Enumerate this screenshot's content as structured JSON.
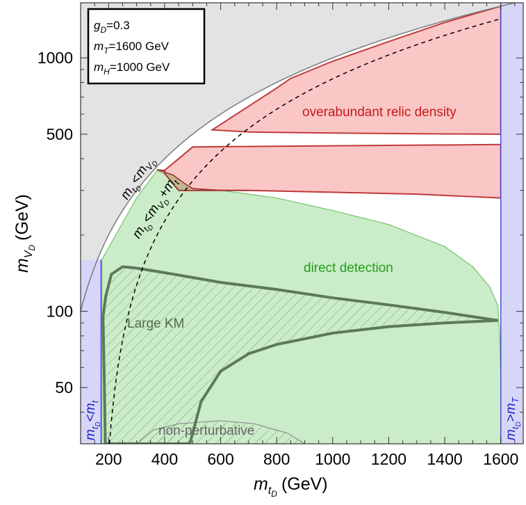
{
  "chart_data": {
    "type": "area",
    "title": "",
    "xlabel": {
      "symbol": "m",
      "sub": "t",
      "subsub": "D",
      "unit": "(GeV)"
    },
    "ylabel": {
      "symbol": "m",
      "sub": "V",
      "subsub": "D",
      "unit": "(GeV)"
    },
    "xlim": [
      100,
      1680
    ],
    "ylim": [
      30,
      1650
    ],
    "yscale": "log",
    "xticks": [
      200,
      400,
      600,
      800,
      1000,
      1200,
      1400,
      1600
    ],
    "xtick_labels": [
      "200",
      "400",
      "600",
      "800",
      "1000",
      "1200",
      "1400",
      "1600"
    ],
    "yticks": [
      50,
      100,
      500,
      1000
    ],
    "ytick_labels": [
      "50",
      "100",
      "500",
      "1000"
    ],
    "parameters": [
      {
        "sym": "g",
        "sub": "D",
        "val": "=0.3"
      },
      {
        "sym": "m",
        "sub": "T",
        "val": "=1600 GeV"
      },
      {
        "sym": "m",
        "sub": "H",
        "val": "=1000 GeV"
      }
    ],
    "regions": [
      {
        "name": "kinematic-bound",
        "label": "m_tD < m_VD",
        "color": "#e3e3e3"
      },
      {
        "name": "overabundant",
        "label": "overabundant relic density",
        "color": "#fbc6c6",
        "label_color": "#c41a1a"
      },
      {
        "name": "direct-detection",
        "label": "direct detection",
        "color": "#cbecc8",
        "label_color": "#23a11e"
      },
      {
        "name": "large-km",
        "label": "Large KM",
        "color": "#5a7a5a",
        "label_color": "#4c6b4c"
      },
      {
        "name": "non-perturbative",
        "label": "non-perturbative",
        "color": "#7a7a7a",
        "label_color": "#666666"
      },
      {
        "name": "low-mass-excluded",
        "label": "m_tD < m_t",
        "color": "#d6d6f8",
        "label_color": "#2323c8"
      },
      {
        "name": "high-mass-excluded",
        "label": "m_tD > m_T",
        "color": "#d6d6f8",
        "label_color": "#2323c8"
      }
    ],
    "boundaries": {
      "mt": 173,
      "mT": 1600,
      "diagonal": "m_VD = m_tD",
      "dashed": "m_VD = m_tD - m_t"
    },
    "relic_upper_band": {
      "top": [
        [
          570,
          520
        ],
        [
          800,
          760
        ],
        [
          850,
          830
        ],
        [
          1000,
          970
        ],
        [
          1200,
          1160
        ],
        [
          1400,
          1380
        ],
        [
          1600,
          1600
        ]
      ],
      "bottom": [
        [
          570,
          520
        ],
        [
          700,
          510
        ],
        [
          1000,
          505
        ],
        [
          1300,
          502
        ],
        [
          1600,
          500
        ]
      ]
    },
    "relic_lower_band": {
      "top": [
        [
          400,
          360
        ],
        [
          500,
          445
        ],
        [
          1000,
          450
        ],
        [
          1600,
          455
        ]
      ],
      "bottom": [
        [
          400,
          350
        ],
        [
          450,
          300
        ],
        [
          700,
          300
        ],
        [
          1000,
          295
        ],
        [
          1300,
          290
        ],
        [
          1600,
          280
        ]
      ]
    },
    "direct_detection_top": [
      [
        176,
        160
      ],
      [
        300,
        280
      ],
      [
        373,
        360
      ],
      [
        500,
        305
      ],
      [
        600,
        300
      ],
      [
        800,
        280
      ],
      [
        1000,
        250
      ],
      [
        1200,
        220
      ],
      [
        1400,
        180
      ],
      [
        1500,
        150
      ],
      [
        1560,
        125
      ],
      [
        1590,
        105
      ],
      [
        1596,
        80
      ],
      [
        1600,
        55
      ]
    ],
    "large_km_upper": [
      [
        180,
        95
      ],
      [
        190,
        115
      ],
      [
        210,
        140
      ],
      [
        250,
        150
      ],
      [
        300,
        148
      ],
      [
        400,
        142
      ],
      [
        600,
        130
      ],
      [
        800,
        122
      ],
      [
        1000,
        113
      ],
      [
        1200,
        106
      ],
      [
        1400,
        99
      ],
      [
        1590,
        92
      ]
    ],
    "large_km_lower": [
      [
        180,
        95
      ],
      [
        185,
        50
      ],
      [
        188,
        30
      ],
      [
        490,
        30
      ],
      [
        530,
        44
      ],
      [
        600,
        58
      ],
      [
        700,
        68
      ],
      [
        800,
        74
      ],
      [
        1000,
        82
      ],
      [
        1200,
        87
      ],
      [
        1400,
        90
      ],
      [
        1590,
        92
      ]
    ],
    "non_perturbative_top": [
      [
        300,
        30
      ],
      [
        360,
        34
      ],
      [
        450,
        36
      ],
      [
        600,
        37
      ],
      [
        720,
        36
      ],
      [
        840,
        33
      ],
      [
        900,
        30
      ]
    ]
  }
}
